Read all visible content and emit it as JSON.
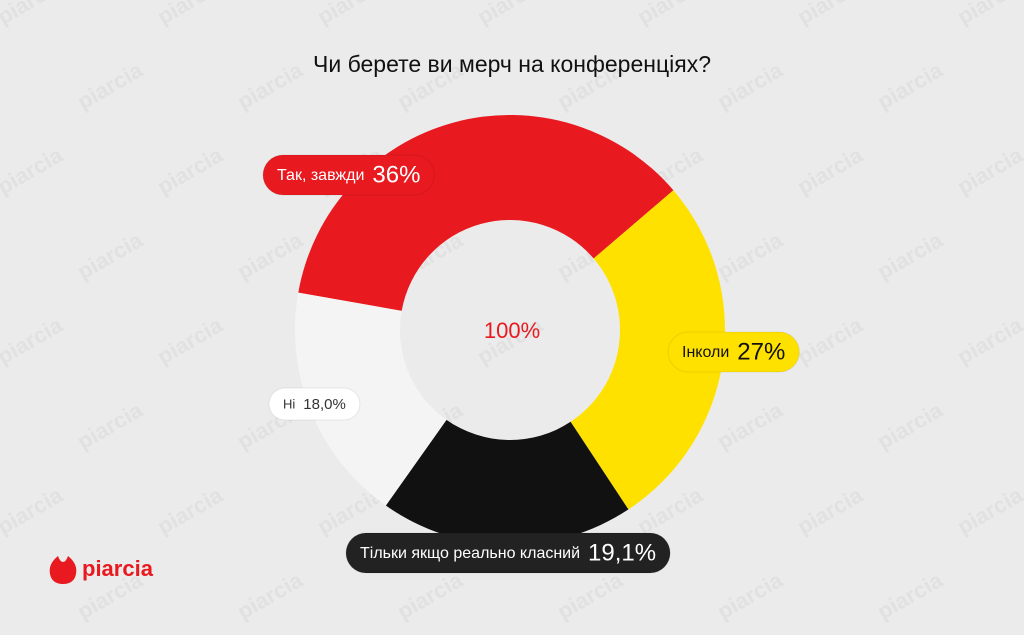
{
  "brand": "piarcia",
  "chart_data": {
    "type": "donut",
    "title": "Чи берете ви мерч на конференціях?",
    "center_label": "100%",
    "categories": [
      "Так, завжди",
      "Інколи",
      "Тільки якщо реально класний",
      "Ні"
    ],
    "values": [
      36,
      27,
      19.1,
      18.0
    ],
    "value_labels": [
      "36%",
      "27%",
      "19,1%",
      "18,0%"
    ],
    "colors": [
      "#e8191f",
      "#ffe100",
      "#111111",
      "#f4f4f4"
    ]
  }
}
